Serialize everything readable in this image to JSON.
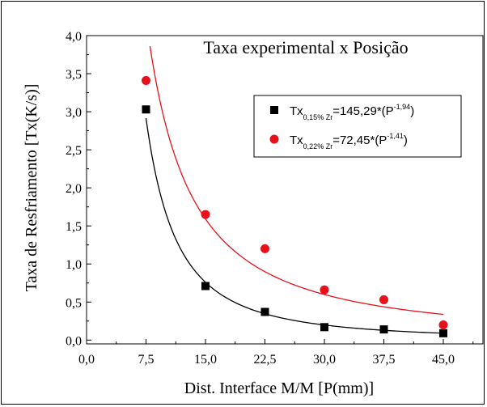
{
  "chart_data": {
    "type": "scatter",
    "title": "Taxa experimental x Posição",
    "xlabel": "Dist. Interface M/M [P(mm)]",
    "ylabel": "Taxa de Resfriamento [Tx(K/s)]",
    "xlim": [
      0,
      50
    ],
    "ylim": [
      -0.05,
      4.0
    ],
    "xticks": [
      "0,0",
      "7,5",
      "15,0",
      "22,5",
      "30,0",
      "37,5",
      "45,0"
    ],
    "xtick_values": [
      0,
      7.5,
      15,
      22.5,
      30,
      37.5,
      45
    ],
    "yticks": [
      "0,0",
      "0,5",
      "1,0",
      "1,5",
      "2,0",
      "2,5",
      "3,0",
      "3,5",
      "4,0"
    ],
    "ytick_values": [
      0,
      0.5,
      1.0,
      1.5,
      2.0,
      2.5,
      3.0,
      3.5,
      4.0
    ],
    "grid": false,
    "legend_position": "top-right",
    "series": [
      {
        "label_main": "Tx",
        "label_sub": "0,15% Zr",
        "label_eq": "=145,29*(P",
        "label_sup": "-1,94",
        "label_end": ")",
        "marker": "square",
        "color": "#000000",
        "x": [
          7.5,
          15,
          22.5,
          30,
          37.5,
          45
        ],
        "y": [
          3.03,
          0.71,
          0.37,
          0.17,
          0.14,
          0.09
        ],
        "fit": {
          "a": 145.29,
          "b": -1.94
        }
      },
      {
        "label_main": "Tx",
        "label_sub": "0,22% Zr",
        "label_eq": "=72,45*(P",
        "label_sup": "-1,41",
        "label_end": ")",
        "marker": "circle",
        "color": "#e8101a",
        "x": [
          7.5,
          15,
          22.5,
          30,
          37.5,
          45
        ],
        "y": [
          3.41,
          1.65,
          1.2,
          0.66,
          0.53,
          0.2
        ],
        "fit": {
          "a": 72.45,
          "b": -1.41
        }
      }
    ]
  }
}
